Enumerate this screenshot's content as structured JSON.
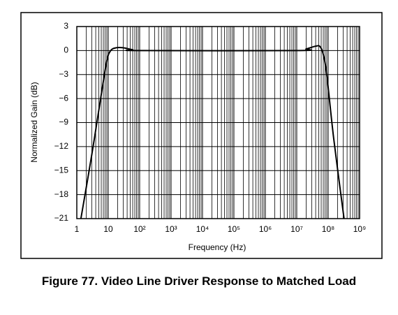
{
  "chart_data": {
    "type": "line",
    "title": "Figure 77. Video Line Driver Response to Matched Load",
    "xlabel": "Frequency (Hz)",
    "ylabel": "Normalized Gain (dB)",
    "xscale": "log",
    "grid": true,
    "xminor": true,
    "color": "#000000",
    "xlim": [
      1,
      1000000000
    ],
    "ylim": [
      -21,
      3
    ],
    "xticks": [
      1,
      10,
      {
        "value": 100,
        "label": "10²"
      },
      {
        "value": 1000,
        "label": "10³"
      },
      {
        "value": 10000,
        "label": "10⁴"
      },
      {
        "value": 100000,
        "label": "10⁵"
      },
      {
        "value": 1000000,
        "label": "10⁶"
      },
      {
        "value": 10000000,
        "label": "10⁷"
      },
      {
        "value": 100000000,
        "label": "10⁸"
      },
      {
        "value": 1000000000,
        "label": "10⁹"
      }
    ],
    "yticks": [
      3,
      0,
      {
        "value": -3,
        "label": "−3"
      },
      {
        "value": -6,
        "label": "−6"
      },
      {
        "value": -9,
        "label": "−9"
      },
      {
        "value": -12,
        "label": "−12"
      },
      {
        "value": -15,
        "label": "−15"
      },
      {
        "value": -18,
        "label": "−18"
      },
      {
        "value": -21,
        "label": "−21"
      }
    ],
    "x": [
      1.35,
      3,
      6,
      9,
      12,
      18,
      30,
      60,
      100,
      10000000,
      20000000,
      40000000,
      55000000,
      70000000,
      90000000,
      150000000,
      320000000
    ],
    "values": [
      -21,
      -13,
      -5.5,
      -1.3,
      0,
      0.35,
      0.35,
      0.1,
      0,
      0,
      0.2,
      0.55,
      0.5,
      -0.5,
      -3,
      -11,
      -21
    ]
  }
}
